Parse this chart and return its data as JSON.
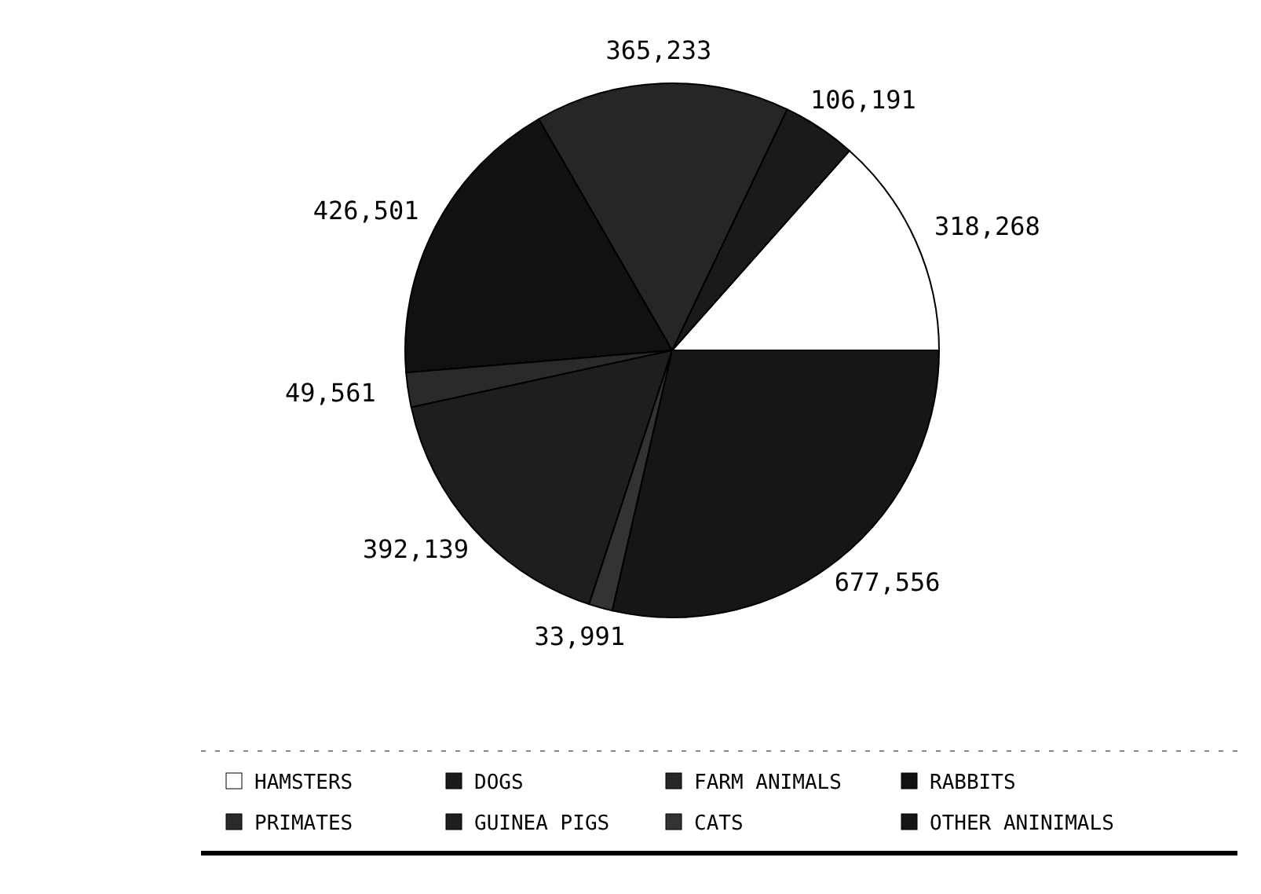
{
  "chart_data": {
    "type": "pie",
    "categories": [
      "HAMSTERS",
      "DOGS",
      "FARM ANIMALS",
      "RABBITS",
      "PRIMATES",
      "GUINEA PIGS",
      "CATS",
      "OTHER ANINIMALS"
    ],
    "values": [
      318268,
      106191,
      365233,
      426501,
      49561,
      392139,
      33991,
      677556
    ],
    "colors": [
      "#ffffff",
      "#1a1a1a",
      "#262626",
      "#111111",
      "#2a2a2a",
      "#1e1e1e",
      "#333333",
      "#161616"
    ],
    "value_labels": [
      "318,268",
      "106,191",
      "365,233",
      "426,501",
      "49,561",
      "392,139",
      "33,991",
      "677,556"
    ],
    "legend": "bottom"
  }
}
